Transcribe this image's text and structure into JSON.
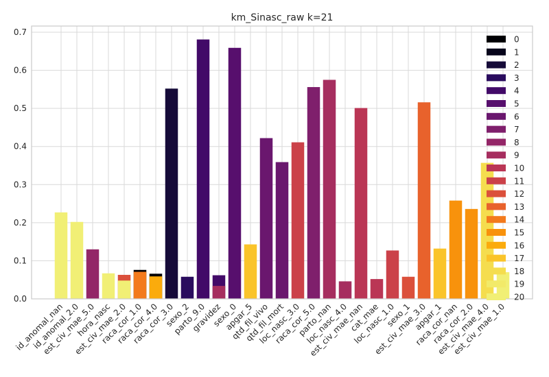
{
  "chart_data": {
    "type": "bar",
    "title": "km_Sinasc_raw k=21",
    "xlabel": "",
    "ylabel": "",
    "ylim": [
      0,
      0.72
    ],
    "yticks": [
      0.0,
      0.1,
      0.2,
      0.3,
      0.4,
      0.5,
      0.6,
      0.7
    ],
    "ytick_labels": [
      "0.0",
      "0.1",
      "0.2",
      "0.3",
      "0.4",
      "0.5",
      "0.6",
      "0.7"
    ],
    "grid": true,
    "legend_position": "top-right",
    "categories": [
      "id_anomal_nan",
      "id_anomal_2.0",
      "est_civ_mae_5.0",
      "hora_nasc",
      "est_civ_mae_2.0",
      "raca_cor_1.0",
      "raca_cor_4.0",
      "raca_cor_3.0",
      "sexo_2",
      "parto_9.0",
      "gravidez",
      "sexo_0",
      "apgar_5",
      "qtd_fil_vivo",
      "qtd_fil_mort",
      "loc_nasc_3.0",
      "raca_cor_5.0",
      "parto_nan",
      "loc_nasc_4.0",
      "est_civ_mae_nan",
      "cat_mae",
      "loc_nasc_1.0",
      "sexo_1",
      "est_civ_mae_3.0",
      "apgar_1",
      "raca_cor_nan",
      "raca_cor_2.0",
      "est_civ_mae_4.0",
      "est_civ_mae_1.0"
    ],
    "legend": [
      "0",
      "1",
      "2",
      "3",
      "4",
      "5",
      "6",
      "7",
      "8",
      "9",
      "10",
      "11",
      "12",
      "13",
      "14",
      "15",
      "16",
      "17",
      "18",
      "19",
      "20"
    ],
    "colors": [
      "#000004",
      "#07051b",
      "#160b39",
      "#2a0c5e",
      "#420a68",
      "#570f6d",
      "#6a176e",
      "#7f1f6c",
      "#932667",
      "#a62e5f",
      "#ba3655",
      "#cb4149",
      "#db503b",
      "#e8622c",
      "#f37a1c",
      "#f8920c",
      "#fbab0c",
      "#fac42a",
      "#f5dd4e",
      "#f2ea69",
      "#f1ef75"
    ],
    "bars": [
      {
        "x": 0,
        "cluster": 20,
        "value": 0.227
      },
      {
        "x": 1,
        "cluster": 20,
        "value": 0.202
      },
      {
        "x": 2,
        "cluster": 8,
        "value": 0.13
      },
      {
        "x": 3,
        "cluster": 20,
        "value": 0.067
      },
      {
        "x": 4,
        "cluster": 12,
        "value": 0.063
      },
      {
        "x": 4,
        "cluster": 20,
        "value": 0.048
      },
      {
        "x": 5,
        "cluster": 0,
        "value": 0.076
      },
      {
        "x": 5,
        "cluster": 14,
        "value": 0.071
      },
      {
        "x": 6,
        "cluster": 0,
        "value": 0.066
      },
      {
        "x": 6,
        "cluster": 16,
        "value": 0.059
      },
      {
        "x": 7,
        "cluster": 2,
        "value": 0.552
      },
      {
        "x": 8,
        "cluster": 3,
        "value": 0.058
      },
      {
        "x": 9,
        "cluster": 4,
        "value": 0.681
      },
      {
        "x": 10,
        "cluster": 4,
        "value": 0.062
      },
      {
        "x": 10,
        "cluster": 9,
        "value": 0.034
      },
      {
        "x": 11,
        "cluster": 5,
        "value": 0.659
      },
      {
        "x": 12,
        "cluster": 17,
        "value": 0.143
      },
      {
        "x": 13,
        "cluster": 6,
        "value": 0.422
      },
      {
        "x": 14,
        "cluster": 6,
        "value": 0.359
      },
      {
        "x": 15,
        "cluster": 11,
        "value": 0.411
      },
      {
        "x": 16,
        "cluster": 7,
        "value": 0.556
      },
      {
        "x": 17,
        "cluster": 9,
        "value": 0.575
      },
      {
        "x": 18,
        "cluster": 9,
        "value": 0.046
      },
      {
        "x": 19,
        "cluster": 10,
        "value": 0.501
      },
      {
        "x": 20,
        "cluster": 10,
        "value": 0.052
      },
      {
        "x": 21,
        "cluster": 11,
        "value": 0.127
      },
      {
        "x": 22,
        "cluster": 12,
        "value": 0.058
      },
      {
        "x": 23,
        "cluster": 13,
        "value": 0.516
      },
      {
        "x": 24,
        "cluster": 17,
        "value": 0.132
      },
      {
        "x": 25,
        "cluster": 15,
        "value": 0.258
      },
      {
        "x": 26,
        "cluster": 15,
        "value": 0.236
      },
      {
        "x": 27,
        "cluster": 18,
        "value": 0.357
      },
      {
        "x": 28,
        "cluster": 20,
        "value": 0.07
      }
    ]
  }
}
